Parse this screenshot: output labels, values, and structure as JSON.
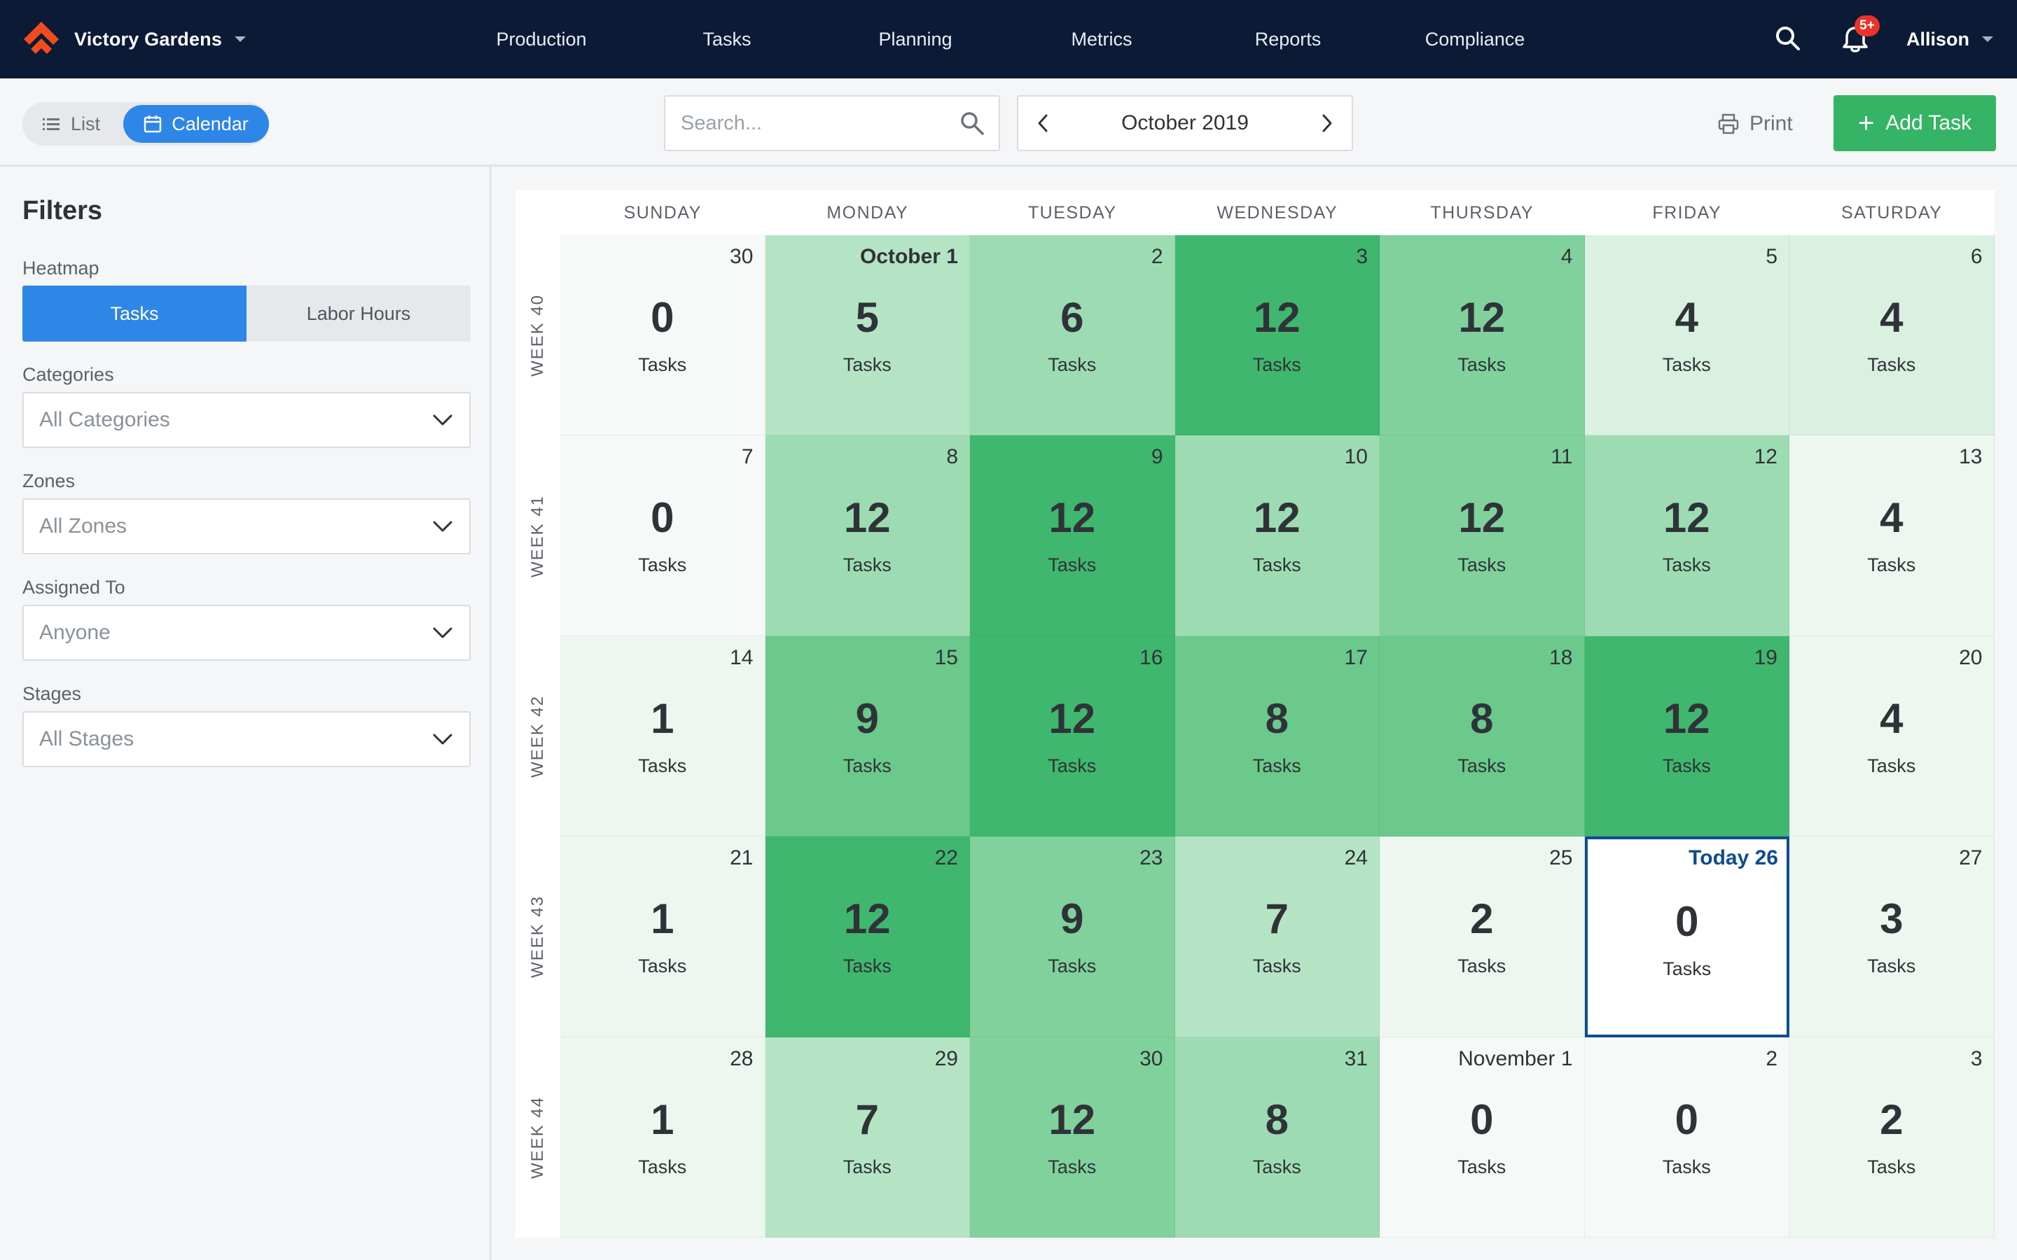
{
  "app": {
    "org_name": "Victory Gardens",
    "nav": [
      "Production",
      "Tasks",
      "Planning",
      "Metrics",
      "Reports",
      "Compliance"
    ],
    "notification_badge": "5+",
    "user_name": "Allison",
    "logo_color": "#f24b1e"
  },
  "toolbar": {
    "view_list": "List",
    "view_calendar": "Calendar",
    "active_view": "Calendar",
    "search_placeholder": "Search...",
    "month": "October 2019",
    "print_label": "Print",
    "add_task_label": "Add Task"
  },
  "filters": {
    "title": "Filters",
    "heatmap_label": "Heatmap",
    "heatmap_options": [
      "Tasks",
      "Labor Hours"
    ],
    "heatmap_active": "Tasks",
    "categories_label": "Categories",
    "categories_value": "All Categories",
    "zones_label": "Zones",
    "zones_value": "All Zones",
    "assigned_label": "Assigned To",
    "assigned_value": "Anyone",
    "stages_label": "Stages",
    "stages_value": "All Stages"
  },
  "calendar": {
    "weekdays": [
      "SUNDAY",
      "MONDAY",
      "TUESDAY",
      "WEDNESDAY",
      "THURSDAY",
      "FRIDAY",
      "SATURDAY"
    ],
    "unit_label": "Tasks",
    "heat_colors": [
      "#f7f8f8",
      "#edf7f0",
      "#daf0e1",
      "#b5e4c4",
      "#9ddcb2",
      "#80d19c",
      "#6ac98b",
      "#3fb76e"
    ],
    "weeks": [
      {
        "label": "WEEK 40",
        "days": [
          {
            "date": "30",
            "count": 0,
            "heat": 0
          },
          {
            "date": "October 1",
            "count": 5,
            "heat": 3,
            "bold": true
          },
          {
            "date": "2",
            "count": 6,
            "heat": 4
          },
          {
            "date": "3",
            "count": 12,
            "heat": 7
          },
          {
            "date": "4",
            "count": 12,
            "heat": 5
          },
          {
            "date": "5",
            "count": 4,
            "heat": 2
          },
          {
            "date": "6",
            "count": 4,
            "heat": 2
          }
        ]
      },
      {
        "label": "WEEK 41",
        "days": [
          {
            "date": "7",
            "count": 0,
            "heat": 0
          },
          {
            "date": "8",
            "count": 12,
            "heat": 4
          },
          {
            "date": "9",
            "count": 12,
            "heat": 7
          },
          {
            "date": "10",
            "count": 12,
            "heat": 4
          },
          {
            "date": "11",
            "count": 12,
            "heat": 5
          },
          {
            "date": "12",
            "count": 12,
            "heat": 4
          },
          {
            "date": "13",
            "count": 4,
            "heat": 1
          }
        ]
      },
      {
        "label": "WEEK 42",
        "days": [
          {
            "date": "14",
            "count": 1,
            "heat": 1
          },
          {
            "date": "15",
            "count": 9,
            "heat": 6
          },
          {
            "date": "16",
            "count": 12,
            "heat": 7
          },
          {
            "date": "17",
            "count": 8,
            "heat": 6
          },
          {
            "date": "18",
            "count": 8,
            "heat": 6
          },
          {
            "date": "19",
            "count": 12,
            "heat": 7
          },
          {
            "date": "20",
            "count": 4,
            "heat": 1
          }
        ]
      },
      {
        "label": "WEEK 43",
        "days": [
          {
            "date": "21",
            "count": 1,
            "heat": 1
          },
          {
            "date": "22",
            "count": 12,
            "heat": 7
          },
          {
            "date": "23",
            "count": 9,
            "heat": 5
          },
          {
            "date": "24",
            "count": 7,
            "heat": 3
          },
          {
            "date": "25",
            "count": 2,
            "heat": 1
          },
          {
            "date": "Today 26",
            "count": 0,
            "heat": 0,
            "today": true
          },
          {
            "date": "27",
            "count": 3,
            "heat": 1
          }
        ]
      },
      {
        "label": "WEEK 44",
        "days": [
          {
            "date": "28",
            "count": 1,
            "heat": 1
          },
          {
            "date": "29",
            "count": 7,
            "heat": 3
          },
          {
            "date": "30",
            "count": 12,
            "heat": 5
          },
          {
            "date": "31",
            "count": 8,
            "heat": 4
          },
          {
            "date": "November 1",
            "count": 0,
            "heat": 0
          },
          {
            "date": "2",
            "count": 0,
            "heat": 0
          },
          {
            "date": "3",
            "count": 2,
            "heat": 1
          }
        ]
      }
    ]
  }
}
